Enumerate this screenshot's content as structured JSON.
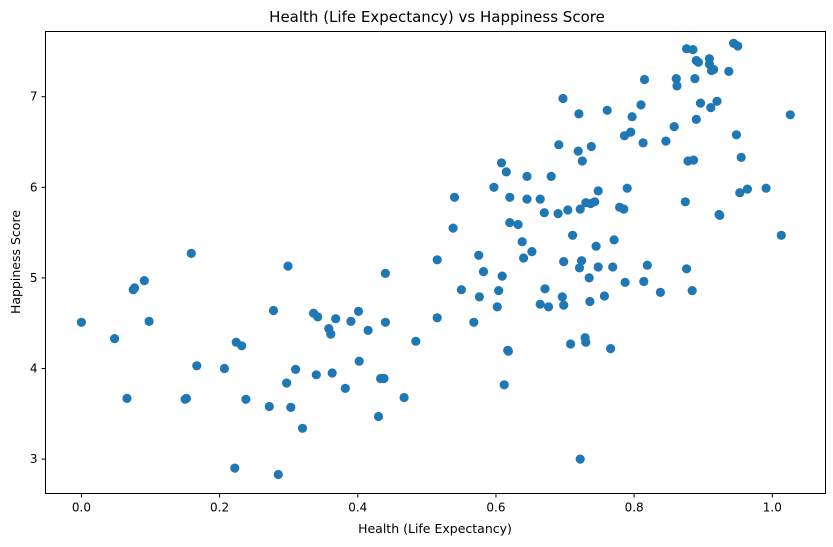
{
  "chart_data": {
    "type": "scatter",
    "title": "Health (Life Expectancy) vs Happiness Score",
    "xlabel": "Health (Life Expectancy)",
    "ylabel": "Happiness Score",
    "xlim": [
      -0.052,
      1.077
    ],
    "ylim": [
      2.62,
      7.72
    ],
    "xticks": [
      0.0,
      0.2,
      0.4,
      0.6,
      0.8,
      1.0
    ],
    "xtick_labels": [
      "0.0",
      "0.2",
      "0.4",
      "0.6",
      "0.8",
      "1.0"
    ],
    "yticks": [
      3,
      4,
      5,
      6,
      7
    ],
    "ytick_labels": [
      "3",
      "4",
      "5",
      "6",
      "7"
    ],
    "grid": false,
    "color": "#1f77b4",
    "points": [
      [
        0.0,
        4.51
      ],
      [
        0.048,
        4.33
      ],
      [
        0.066,
        3.67
      ],
      [
        0.075,
        4.87
      ],
      [
        0.077,
        4.89
      ],
      [
        0.091,
        4.97
      ],
      [
        0.098,
        4.52
      ],
      [
        0.15,
        3.66
      ],
      [
        0.152,
        3.67
      ],
      [
        0.159,
        5.27
      ],
      [
        0.167,
        4.03
      ],
      [
        0.207,
        4.0
      ],
      [
        0.222,
        2.9
      ],
      [
        0.224,
        4.29
      ],
      [
        0.232,
        4.25
      ],
      [
        0.238,
        3.66
      ],
      [
        0.272,
        3.58
      ],
      [
        0.278,
        4.64
      ],
      [
        0.285,
        2.83
      ],
      [
        0.297,
        3.84
      ],
      [
        0.299,
        5.13
      ],
      [
        0.303,
        3.57
      ],
      [
        0.31,
        3.99
      ],
      [
        0.32,
        3.34
      ],
      [
        0.336,
        4.61
      ],
      [
        0.34,
        3.93
      ],
      [
        0.342,
        4.57
      ],
      [
        0.358,
        4.44
      ],
      [
        0.361,
        4.38
      ],
      [
        0.363,
        3.95
      ],
      [
        0.368,
        4.55
      ],
      [
        0.382,
        3.78
      ],
      [
        0.39,
        4.52
      ],
      [
        0.401,
        4.63
      ],
      [
        0.402,
        4.08
      ],
      [
        0.415,
        4.42
      ],
      [
        0.43,
        3.47
      ],
      [
        0.433,
        3.89
      ],
      [
        0.438,
        3.89
      ],
      [
        0.44,
        4.51
      ],
      [
        0.44,
        5.05
      ],
      [
        0.467,
        3.68
      ],
      [
        0.484,
        4.3
      ],
      [
        0.515,
        4.56
      ],
      [
        0.515,
        5.2
      ],
      [
        0.538,
        5.55
      ],
      [
        0.54,
        5.89
      ],
      [
        0.55,
        4.87
      ],
      [
        0.568,
        4.51
      ],
      [
        0.575,
        5.25
      ],
      [
        0.576,
        4.79
      ],
      [
        0.582,
        5.07
      ],
      [
        0.597,
        6.0
      ],
      [
        0.602,
        4.68
      ],
      [
        0.604,
        4.86
      ],
      [
        0.608,
        6.27
      ],
      [
        0.609,
        5.02
      ],
      [
        0.612,
        3.82
      ],
      [
        0.615,
        6.17
      ],
      [
        0.617,
        4.2
      ],
      [
        0.618,
        4.19
      ],
      [
        0.62,
        5.61
      ],
      [
        0.62,
        5.89
      ],
      [
        0.632,
        5.59
      ],
      [
        0.638,
        5.4
      ],
      [
        0.64,
        5.22
      ],
      [
        0.645,
        6.12
      ],
      [
        0.645,
        5.87
      ],
      [
        0.652,
        5.29
      ],
      [
        0.664,
        4.71
      ],
      [
        0.664,
        5.87
      ],
      [
        0.67,
        5.72
      ],
      [
        0.671,
        4.88
      ],
      [
        0.676,
        4.68
      ],
      [
        0.68,
        6.12
      ],
      [
        0.69,
        5.71
      ],
      [
        0.691,
        6.47
      ],
      [
        0.696,
        4.79
      ],
      [
        0.697,
        6.98
      ],
      [
        0.698,
        4.7
      ],
      [
        0.698,
        5.18
      ],
      [
        0.704,
        5.75
      ],
      [
        0.708,
        4.27
      ],
      [
        0.711,
        5.47
      ],
      [
        0.719,
        6.4
      ],
      [
        0.72,
        6.81
      ],
      [
        0.721,
        5.11
      ],
      [
        0.722,
        3.0
      ],
      [
        0.722,
        5.76
      ],
      [
        0.724,
        5.19
      ],
      [
        0.725,
        6.29
      ],
      [
        0.729,
        4.34
      ],
      [
        0.73,
        4.29
      ],
      [
        0.73,
        5.83
      ],
      [
        0.735,
        5.0
      ],
      [
        0.736,
        4.74
      ],
      [
        0.737,
        5.82
      ],
      [
        0.738,
        6.45
      ],
      [
        0.743,
        5.84
      ],
      [
        0.745,
        5.35
      ],
      [
        0.748,
        5.96
      ],
      [
        0.748,
        5.12
      ],
      [
        0.757,
        4.8
      ],
      [
        0.761,
        6.85
      ],
      [
        0.766,
        4.22
      ],
      [
        0.769,
        5.12
      ],
      [
        0.771,
        5.42
      ],
      [
        0.779,
        5.78
      ],
      [
        0.785,
        5.76
      ],
      [
        0.786,
        6.57
      ],
      [
        0.787,
        4.95
      ],
      [
        0.79,
        5.99
      ],
      [
        0.795,
        6.61
      ],
      [
        0.797,
        6.78
      ],
      [
        0.81,
        6.91
      ],
      [
        0.813,
        6.49
      ],
      [
        0.814,
        4.96
      ],
      [
        0.815,
        7.19
      ],
      [
        0.819,
        5.14
      ],
      [
        0.838,
        4.84
      ],
      [
        0.846,
        6.51
      ],
      [
        0.858,
        6.67
      ],
      [
        0.861,
        7.2
      ],
      [
        0.862,
        7.12
      ],
      [
        0.874,
        5.84
      ],
      [
        0.876,
        5.1
      ],
      [
        0.876,
        7.53
      ],
      [
        0.878,
        6.29
      ],
      [
        0.884,
        4.86
      ],
      [
        0.885,
        7.52
      ],
      [
        0.886,
        6.3
      ],
      [
        0.888,
        7.2
      ],
      [
        0.89,
        7.4
      ],
      [
        0.89,
        6.75
      ],
      [
        0.893,
        7.38
      ],
      [
        0.896,
        6.93
      ],
      [
        0.909,
        7.42
      ],
      [
        0.909,
        7.36
      ],
      [
        0.911,
        6.88
      ],
      [
        0.912,
        7.29
      ],
      [
        0.915,
        7.3
      ],
      [
        0.92,
        6.95
      ],
      [
        0.923,
        5.7
      ],
      [
        0.924,
        5.69
      ],
      [
        0.937,
        7.28
      ],
      [
        0.944,
        7.59
      ],
      [
        0.948,
        6.58
      ],
      [
        0.95,
        7.56
      ],
      [
        0.953,
        5.94
      ],
      [
        0.955,
        6.33
      ],
      [
        0.964,
        5.98
      ],
      [
        0.991,
        5.99
      ],
      [
        1.013,
        5.47
      ],
      [
        1.026,
        6.8
      ]
    ]
  }
}
